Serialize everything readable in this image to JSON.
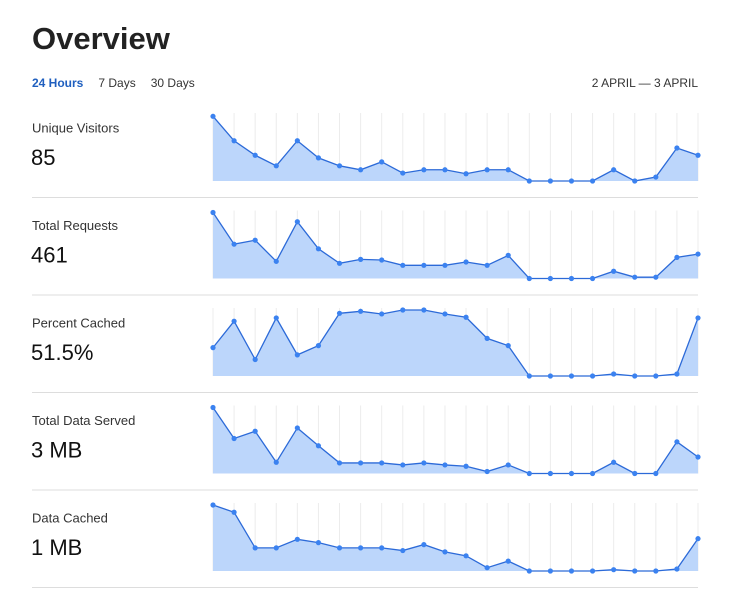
{
  "header": {
    "title": "Overview"
  },
  "tabs": [
    "24 Hours",
    "7 Days",
    "30 Days"
  ],
  "active_tab": 0,
  "date_range": "2 APRIL — 3 APRIL",
  "metrics": [
    {
      "label": "Unique Visitors",
      "value": "85",
      "sparkline": {
        "type": "line",
        "ylim": [
          0,
          100
        ],
        "values": [
          98,
          61,
          39,
          23,
          61,
          35,
          23,
          17,
          29,
          12,
          17,
          17,
          11,
          17,
          17,
          0,
          0,
          0,
          0,
          17,
          0,
          6,
          50,
          39
        ]
      }
    },
    {
      "label": "Total Requests",
      "value": "461",
      "sparkline": {
        "type": "line",
        "ylim": [
          0,
          100
        ],
        "values": [
          100,
          52,
          58,
          26,
          86,
          45,
          23,
          29,
          28,
          20,
          20,
          20,
          25,
          20,
          35,
          0,
          0,
          0,
          0,
          11,
          2,
          2,
          32,
          37
        ]
      }
    },
    {
      "label": "Percent Cached",
      "value": "51.5%",
      "sparkline": {
        "type": "line",
        "ylim": [
          0,
          100
        ],
        "values": [
          43,
          83,
          25,
          88,
          32,
          46,
          95,
          98,
          94,
          100,
          100,
          94,
          89,
          57,
          46,
          0,
          0,
          0,
          0,
          3,
          0,
          0,
          3,
          88
        ]
      }
    },
    {
      "label": "Total Data Served",
      "value": "3 MB",
      "sparkline": {
        "type": "line",
        "ylim": [
          0,
          100
        ],
        "values": [
          100,
          53,
          64,
          17,
          69,
          42,
          16,
          16,
          16,
          13,
          16,
          13,
          11,
          3,
          13,
          0,
          0,
          0,
          0,
          17,
          0,
          0,
          48,
          25
        ]
      }
    },
    {
      "label": "Data Cached",
      "value": "1 MB",
      "sparkline": {
        "type": "line",
        "ylim": [
          0,
          100
        ],
        "values": [
          100,
          89,
          35,
          35,
          48,
          43,
          35,
          35,
          35,
          31,
          40,
          29,
          23,
          5,
          15,
          0,
          0,
          0,
          0,
          2,
          0,
          0,
          3,
          49
        ]
      }
    }
  ]
}
